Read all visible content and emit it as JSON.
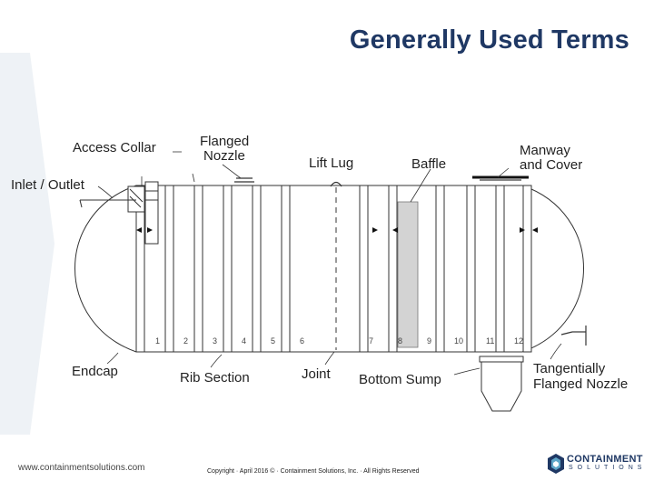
{
  "page": {
    "title": "Generally Used Terms"
  },
  "diagram": {
    "labels": {
      "access_collar": "Access Collar",
      "flanged_nozzle_1": "Flanged",
      "flanged_nozzle_2": "Nozzle",
      "lift_lug": "Lift Lug",
      "baffle": "Baffle",
      "manway_1": "Manway",
      "manway_2": "and Cover",
      "inlet_outlet": "Inlet / Outlet",
      "endcap": "Endcap",
      "rib_section": "Rib Section",
      "joint": "Joint",
      "bottom_sump": "Bottom Sump",
      "tangential_1": "Tangentially",
      "tangential_2": "Flanged Nozzle"
    },
    "rib_numbers": [
      "1",
      "2",
      "3",
      "4",
      "5",
      "6",
      "7",
      "8",
      "9",
      "10",
      "11",
      "12"
    ]
  },
  "footer": {
    "url": "www.containmentsolutions.com",
    "copyright": "Copyright · April 2016 © · Containment Solutions, Inc. · All Rights Reserved",
    "logo_name": "CONTAINMENT",
    "logo_sub": "SOLUTIONS"
  },
  "colors": {
    "title": "#1f3864",
    "baffle": "#d3d3d3"
  }
}
